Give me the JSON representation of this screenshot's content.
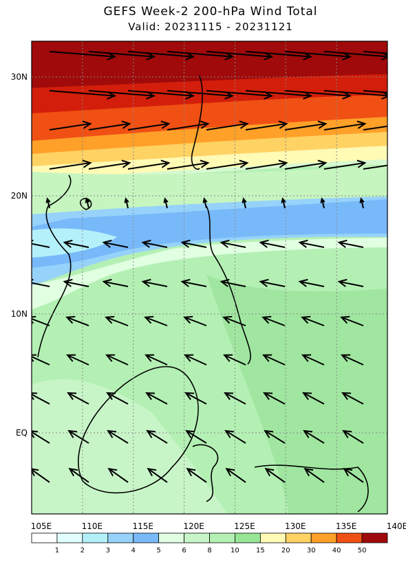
{
  "header": {
    "title": "GEFS Week-2 200-hPa Wind Total",
    "subtitle": "Valid: 20231115 - 20231121"
  },
  "axes": {
    "lon_labels": [
      "105E",
      "110E",
      "115E",
      "120E",
      "125E",
      "130E",
      "135E",
      "140E"
    ],
    "lat_labels": [
      "30N",
      "20N",
      "10N",
      "EQ"
    ]
  },
  "colorbar": {
    "labels": [
      1,
      2,
      3,
      4,
      5,
      6,
      8,
      10,
      15,
      20,
      30,
      40,
      50
    ]
  }
}
